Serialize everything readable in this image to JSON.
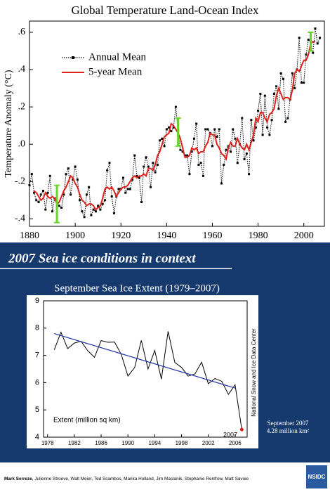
{
  "chart_data": [
    {
      "type": "line",
      "title": "Global Temperature Land-Ocean Index",
      "ylabel": "Temperature Anomaly (°C)",
      "x": [
        1880,
        1881,
        1882,
        1883,
        1884,
        1885,
        1886,
        1887,
        1888,
        1889,
        1890,
        1891,
        1892,
        1893,
        1894,
        1895,
        1896,
        1897,
        1898,
        1899,
        1900,
        1901,
        1902,
        1903,
        1904,
        1905,
        1906,
        1907,
        1908,
        1909,
        1910,
        1911,
        1912,
        1913,
        1914,
        1915,
        1916,
        1917,
        1918,
        1919,
        1920,
        1921,
        1922,
        1923,
        1924,
        1925,
        1926,
        1927,
        1928,
        1929,
        1930,
        1931,
        1932,
        1933,
        1934,
        1935,
        1936,
        1937,
        1938,
        1939,
        1940,
        1941,
        1942,
        1943,
        1944,
        1945,
        1946,
        1947,
        1948,
        1949,
        1950,
        1951,
        1952,
        1953,
        1954,
        1955,
        1956,
        1957,
        1958,
        1959,
        1960,
        1961,
        1962,
        1963,
        1964,
        1965,
        1966,
        1967,
        1968,
        1969,
        1970,
        1971,
        1972,
        1973,
        1974,
        1975,
        1976,
        1977,
        1978,
        1979,
        1980,
        1981,
        1982,
        1983,
        1984,
        1985,
        1986,
        1987,
        1988,
        1989,
        1990,
        1991,
        1992,
        1993,
        1994,
        1995,
        1996,
        1997,
        1998,
        1999,
        2000,
        2001,
        2002,
        2003,
        2004,
        2005,
        2006,
        2007
      ],
      "series": [
        {
          "name": "Annual Mean",
          "color": "#000000",
          "line_style": "dotted",
          "marker": "square",
          "values": [
            -0.22,
            -0.16,
            -0.26,
            -0.3,
            -0.31,
            -0.27,
            -0.25,
            -0.35,
            -0.26,
            -0.17,
            -0.36,
            -0.29,
            -0.3,
            -0.33,
            -0.34,
            -0.27,
            -0.16,
            -0.13,
            -0.27,
            -0.19,
            -0.12,
            -0.19,
            -0.3,
            -0.36,
            -0.39,
            -0.27,
            -0.23,
            -0.38,
            -0.35,
            -0.36,
            -0.33,
            -0.35,
            -0.32,
            -0.3,
            -0.14,
            -0.1,
            -0.28,
            -0.37,
            -0.28,
            -0.24,
            -0.24,
            -0.18,
            -0.26,
            -0.24,
            -0.24,
            -0.19,
            -0.06,
            -0.17,
            -0.18,
            -0.31,
            -0.12,
            -0.07,
            -0.12,
            -0.23,
            -0.1,
            -0.15,
            -0.11,
            0.02,
            0.03,
            -0.01,
            0.08,
            0.09,
            0.07,
            0.09,
            0.2,
            0.07,
            -0.03,
            -0.04,
            -0.06,
            -0.06,
            -0.16,
            -0.04,
            0.03,
            0.11,
            -0.11,
            -0.1,
            -0.17,
            0.08,
            0.08,
            0.06,
            -0.01,
            0.08,
            0.04,
            0.08,
            -0.21,
            -0.11,
            -0.03,
            -0.01,
            -0.04,
            0.08,
            0.03,
            -0.1,
            0.0,
            0.14,
            -0.08,
            -0.05,
            -0.16,
            0.13,
            0.02,
            0.09,
            0.18,
            0.27,
            0.05,
            0.26,
            0.09,
            0.05,
            0.13,
            0.27,
            0.31,
            0.19,
            0.38,
            0.35,
            0.12,
            0.14,
            0.24,
            0.38,
            0.3,
            0.4,
            0.57,
            0.33,
            0.33,
            0.48,
            0.56,
            0.55,
            0.49,
            0.62,
            0.54,
            0.57
          ]
        },
        {
          "name": "5-year Mean",
          "color": "#e0201b",
          "line_style": "solid",
          "values": [
            null,
            null,
            -0.25,
            -0.26,
            -0.28,
            -0.3,
            -0.29,
            -0.26,
            -0.28,
            -0.29,
            -0.28,
            -0.29,
            -0.32,
            -0.31,
            -0.28,
            -0.25,
            -0.23,
            -0.2,
            -0.17,
            -0.18,
            -0.21,
            -0.23,
            -0.27,
            -0.3,
            -0.31,
            -0.33,
            -0.32,
            -0.32,
            -0.33,
            -0.35,
            -0.34,
            -0.33,
            -0.29,
            -0.24,
            -0.23,
            -0.24,
            -0.23,
            -0.25,
            -0.28,
            -0.26,
            -0.24,
            -0.23,
            -0.23,
            -0.22,
            -0.2,
            -0.18,
            -0.17,
            -0.18,
            -0.17,
            -0.17,
            -0.16,
            -0.17,
            -0.13,
            -0.13,
            -0.14,
            -0.11,
            -0.06,
            -0.04,
            0.0,
            0.04,
            0.05,
            0.06,
            0.11,
            0.1,
            0.08,
            0.06,
            0.03,
            -0.02,
            -0.07,
            -0.07,
            -0.06,
            -0.02,
            -0.03,
            -0.02,
            -0.05,
            -0.04,
            -0.04,
            -0.01,
            0.01,
            0.06,
            0.05,
            0.05,
            0.0,
            -0.02,
            -0.05,
            -0.06,
            -0.08,
            -0.02,
            0.01,
            -0.01,
            -0.01,
            0.03,
            0.0,
            -0.02,
            -0.03,
            0.0,
            -0.03,
            0.01,
            0.05,
            0.14,
            0.12,
            0.17,
            0.17,
            0.14,
            0.12,
            0.16,
            0.17,
            0.19,
            0.26,
            0.3,
            0.27,
            0.24,
            0.25,
            0.25,
            0.24,
            0.29,
            0.38,
            0.4,
            0.39,
            0.42,
            0.45,
            0.45,
            0.48,
            0.54,
            0.55,
            0.55,
            null,
            null
          ]
        }
      ],
      "uncertainty": {
        "color": "#66d526",
        "x": [
          1892,
          1945,
          2003
        ],
        "low": [
          -0.42,
          -0.01,
          0.5
        ],
        "high": [
          -0.22,
          0.14,
          0.6
        ]
      },
      "xlim": [
        1880,
        2009
      ],
      "ylim": [
        -0.44,
        0.66
      ],
      "xticks": [
        1880,
        1900,
        1920,
        1940,
        1960,
        1980,
        2000
      ],
      "yticks": [
        {
          "value": 0.6,
          "label": ".6"
        },
        {
          "value": 0.4,
          "label": ".4"
        },
        {
          "value": 0.2,
          "label": ".2"
        },
        {
          "value": 0,
          "label": ".0"
        },
        {
          "value": -0.2,
          "label": "-.2"
        },
        {
          "value": -0.4,
          "label": "-.4"
        }
      ],
      "legend": "upper left",
      "grid": false
    },
    {
      "type": "line",
      "title": "September Sea Ice Extent (1979–2007)",
      "ylabel": "Extent (million sq km)",
      "x": [
        1979,
        1980,
        1981,
        1982,
        1983,
        1984,
        1985,
        1986,
        1987,
        1988,
        1989,
        1990,
        1991,
        1992,
        1993,
        1994,
        1995,
        1996,
        1997,
        1998,
        1999,
        2000,
        2001,
        2002,
        2003,
        2004,
        2005,
        2006,
        2007
      ],
      "series": [
        {
          "color": "#000000",
          "values": [
            7.2,
            7.85,
            7.25,
            7.45,
            7.52,
            7.17,
            6.93,
            7.54,
            7.48,
            7.49,
            7.04,
            6.24,
            6.55,
            7.55,
            6.5,
            7.18,
            6.13,
            7.88,
            6.74,
            6.56,
            6.24,
            6.32,
            6.75,
            5.96,
            6.15,
            6.05,
            5.57,
            5.92,
            4.28
          ]
        }
      ],
      "trend": {
        "color": "#1c2fa8",
        "x": [
          1979,
          2006
        ],
        "values": [
          7.8,
          5.8
        ]
      },
      "highlight": {
        "index": 28,
        "color": "#e0201b"
      },
      "point_label": "2007",
      "callout": [
        "September 2007",
        "4.28 million km²"
      ],
      "source": "National Snow and Ice Data Center",
      "xlim": [
        1977.4,
        2007.8
      ],
      "ylim": [
        4,
        9
      ],
      "xticks": [
        {
          "value": 1978,
          "label": "1978"
        },
        1982,
        1986,
        1990,
        1994,
        1998,
        2002,
        2006
      ],
      "yticks": [
        4,
        5,
        6,
        7,
        8,
        9
      ],
      "grid": false
    }
  ],
  "banner": "2007 Sea ice conditions in context",
  "footer": {
    "lead": "Mark Serreze",
    "others": ", Julienne Stroeve, Walt Meier, Ted Scambos, Marika Holland, Jim Maslanik, Stephanie Renfrow, Matt Savoie"
  },
  "logo": "NSIDC"
}
